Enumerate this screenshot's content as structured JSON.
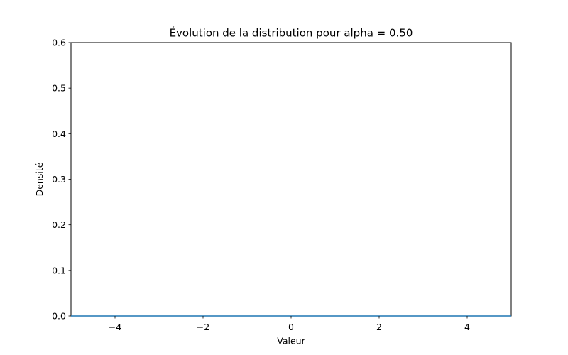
{
  "chart_data": {
    "type": "line",
    "title": "Évolution de la distribution pour alpha = 0.50",
    "xlabel": "Valeur",
    "ylabel": "Densité",
    "xlim": [
      -5,
      5
    ],
    "ylim": [
      0,
      0.6
    ],
    "xticks": [
      -4,
      -2,
      0,
      2,
      4
    ],
    "xtick_labels": [
      "−4",
      "−2",
      "0",
      "2",
      "4"
    ],
    "yticks": [
      0.0,
      0.1,
      0.2,
      0.3,
      0.4,
      0.5,
      0.6
    ],
    "ytick_labels": [
      "0.0",
      "0.1",
      "0.2",
      "0.3",
      "0.4",
      "0.5",
      "0.6"
    ],
    "grid": false,
    "series": [
      {
        "color": "#1f77b4",
        "x": [
          -5,
          -4,
          -3,
          -2,
          -1,
          0,
          1,
          2,
          3,
          4,
          5
        ],
        "y": [
          0,
          0,
          0,
          0,
          0,
          0,
          0,
          0,
          0,
          0,
          0
        ]
      }
    ]
  }
}
